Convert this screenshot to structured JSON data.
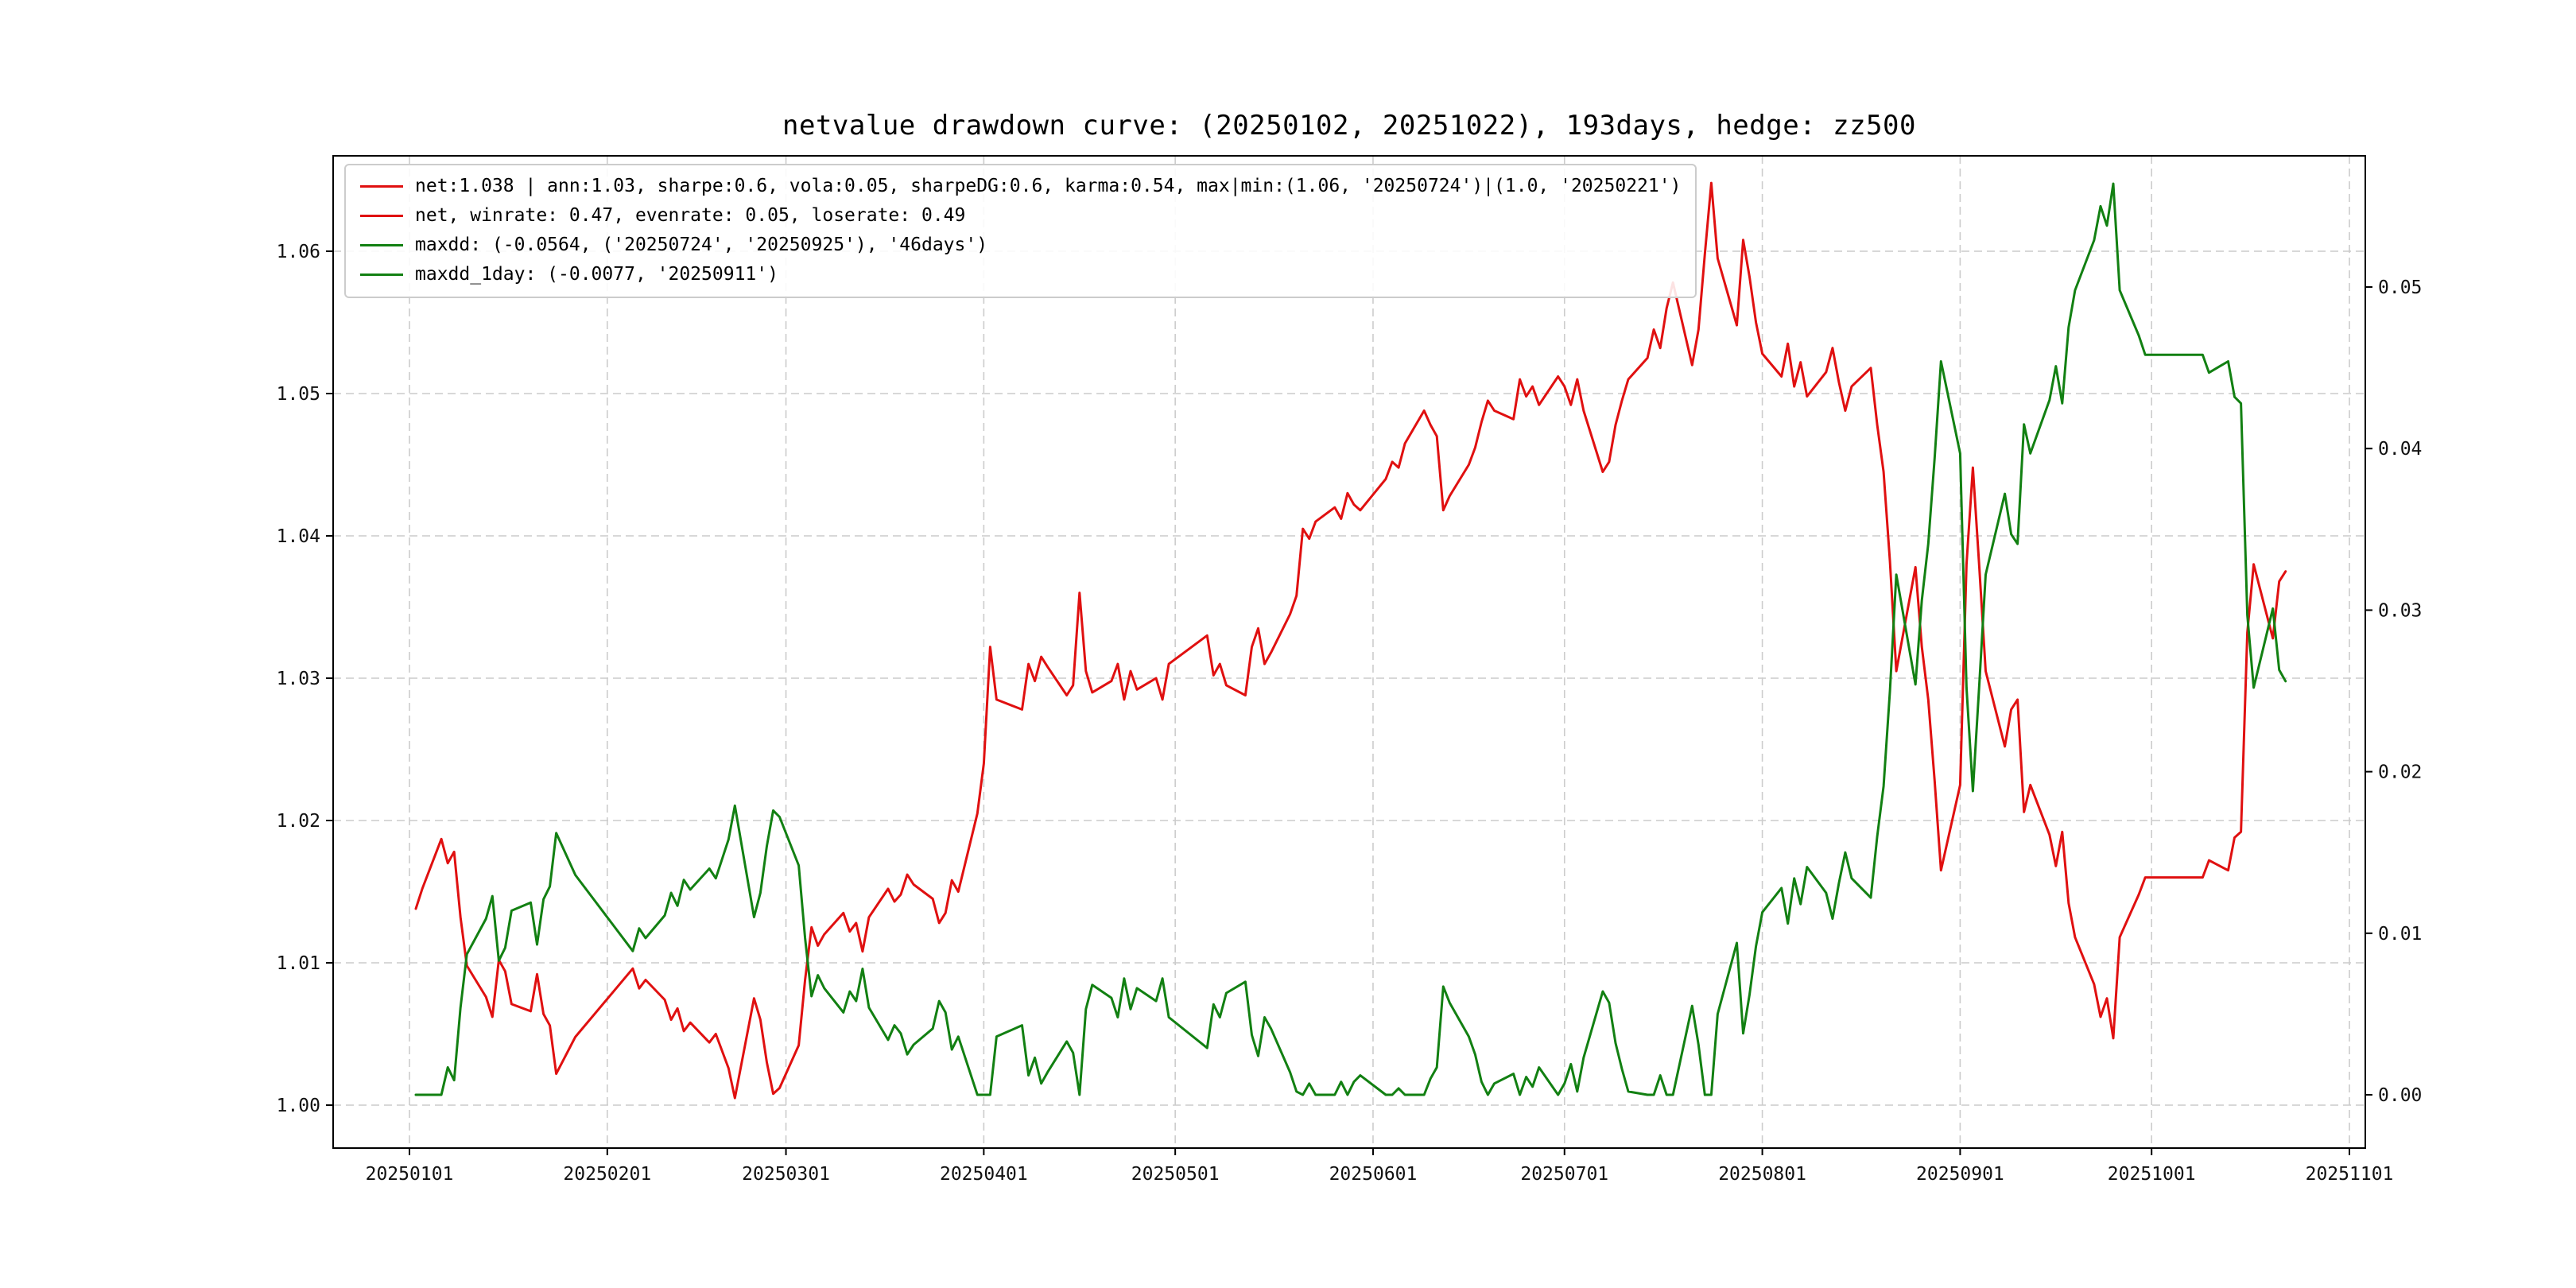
{
  "chart_data": {
    "type": "line",
    "title": "netvalue drawdown curve: (20250102, 20251022), 193days, hedge: zz500",
    "grid": true,
    "legend_position": "upper left",
    "x_ticks": [
      "20250101",
      "20250201",
      "20250301",
      "20250401",
      "20250501",
      "20250601",
      "20250701",
      "20250801",
      "20250901",
      "20251001",
      "20251101"
    ],
    "left_axis": {
      "ticks": [
        "1.00",
        "1.01",
        "1.02",
        "1.03",
        "1.04",
        "1.05",
        "1.06"
      ],
      "ylim": [
        0.9971,
        1.0676
      ]
    },
    "right_axis": {
      "ticks": [
        "0.00",
        "0.01",
        "0.02",
        "0.03",
        "0.04",
        "0.05"
      ],
      "ylim": [
        -0.0033,
        0.0581
      ]
    },
    "colors": {
      "net": "#e01010",
      "drawdown": "#128012"
    },
    "legend": [
      {
        "label": "net:1.038 | ann:1.03, sharpe:0.6, vola:0.05, sharpeDG:0.6, karma:0.54, max|min:(1.06, '20250724')|(1.0, '20250221')",
        "color_key": "net"
      },
      {
        "label": "net, winrate: 0.47, evenrate: 0.05, loserate: 0.49",
        "color_key": "net"
      },
      {
        "label": "maxdd: (-0.0564, ('20250724', '20250925'), '46days')",
        "color_key": "drawdown"
      },
      {
        "label": "maxdd_1day: (-0.0077, '20250911')",
        "color_key": "drawdown"
      }
    ],
    "dates": [
      "20250102",
      "20250103",
      "20250106",
      "20250107",
      "20250108",
      "20250109",
      "20250110",
      "20250113",
      "20250114",
      "20250115",
      "20250116",
      "20250117",
      "20250120",
      "20250121",
      "20250122",
      "20250123",
      "20250124",
      "20250127",
      "20250205",
      "20250206",
      "20250207",
      "20250210",
      "20250211",
      "20250212",
      "20250213",
      "20250214",
      "20250217",
      "20250218",
      "20250219",
      "20250220",
      "20250221",
      "20250224",
      "20250225",
      "20250226",
      "20250227",
      "20250228",
      "20250303",
      "20250304",
      "20250305",
      "20250306",
      "20250307",
      "20250310",
      "20250311",
      "20250312",
      "20250313",
      "20250314",
      "20250317",
      "20250318",
      "20250319",
      "20250320",
      "20250321",
      "20250324",
      "20250325",
      "20250326",
      "20250327",
      "20250328",
      "20250331",
      "20250401",
      "20250402",
      "20250403",
      "20250407",
      "20250408",
      "20250409",
      "20250410",
      "20250411",
      "20250414",
      "20250415",
      "20250416",
      "20250417",
      "20250418",
      "20250421",
      "20250422",
      "20250423",
      "20250424",
      "20250425",
      "20250428",
      "20250429",
      "20250430",
      "20250506",
      "20250507",
      "20250508",
      "20250509",
      "20250512",
      "20250513",
      "20250514",
      "20250515",
      "20250516",
      "20250519",
      "20250520",
      "20250521",
      "20250522",
      "20250523",
      "20250526",
      "20250527",
      "20250528",
      "20250529",
      "20250530",
      "20250603",
      "20250604",
      "20250605",
      "20250606",
      "20250609",
      "20250610",
      "20250611",
      "20250612",
      "20250613",
      "20250616",
      "20250617",
      "20250618",
      "20250619",
      "20250620",
      "20250623",
      "20250624",
      "20250625",
      "20250626",
      "20250627",
      "20250630",
      "20250701",
      "20250702",
      "20250703",
      "20250704",
      "20250707",
      "20250708",
      "20250709",
      "20250710",
      "20250711",
      "20250714",
      "20250715",
      "20250716",
      "20250717",
      "20250718",
      "20250721",
      "20250722",
      "20250723",
      "20250724",
      "20250725",
      "20250728",
      "20250729",
      "20250730",
      "20250731",
      "20250801",
      "20250804",
      "20250805",
      "20250806",
      "20250807",
      "20250808",
      "20250811",
      "20250812",
      "20250813",
      "20250814",
      "20250815",
      "20250818",
      "20250819",
      "20250820",
      "20250821",
      "20250822",
      "20250825",
      "20250826",
      "20250827",
      "20250828",
      "20250829",
      "20250901",
      "20250902",
      "20250903",
      "20250904",
      "20250905",
      "20250908",
      "20250909",
      "20250910",
      "20250911",
      "20250912",
      "20250915",
      "20250916",
      "20250917",
      "20250918",
      "20250919",
      "20250922",
      "20250923",
      "20250924",
      "20250925",
      "20250926",
      "20250929",
      "20250930",
      "20251009",
      "20251010",
      "20251013",
      "20251014",
      "20251015",
      "20251016",
      "20251017",
      "20251020",
      "20251021",
      "20251022"
    ],
    "series": [
      {
        "name": "net",
        "axis": "left",
        "color_key": "net",
        "values": [
          1.0138,
          1.0152,
          1.0187,
          1.017,
          1.0178,
          1.0132,
          1.0098,
          1.0076,
          1.0062,
          1.0102,
          1.0094,
          1.0071,
          1.0066,
          1.0092,
          1.0064,
          1.0056,
          1.0022,
          1.0048,
          1.0096,
          1.0082,
          1.0088,
          1.0074,
          1.006,
          1.0068,
          1.0052,
          1.0058,
          1.0044,
          1.005,
          1.0038,
          1.0026,
          1.0005,
          1.0075,
          1.006,
          1.003,
          1.0008,
          1.0012,
          1.0042,
          1.0088,
          1.0125,
          1.0112,
          1.012,
          1.0135,
          1.0122,
          1.0128,
          1.0108,
          1.0132,
          1.0152,
          1.0143,
          1.0148,
          1.0162,
          1.0155,
          1.0145,
          1.0128,
          1.0135,
          1.0158,
          1.015,
          1.0205,
          1.024,
          1.0322,
          1.0285,
          1.0278,
          1.031,
          1.0298,
          1.0315,
          1.0308,
          1.0288,
          1.0295,
          1.036,
          1.0305,
          1.029,
          1.0298,
          1.031,
          1.0285,
          1.0305,
          1.0292,
          1.03,
          1.0285,
          1.031,
          1.033,
          1.0302,
          1.031,
          1.0295,
          1.0288,
          1.0322,
          1.0335,
          1.031,
          1.0318,
          1.0345,
          1.0358,
          1.0405,
          1.0398,
          1.041,
          1.042,
          1.0412,
          1.043,
          1.0422,
          1.0418,
          1.044,
          1.0452,
          1.0448,
          1.0465,
          1.0488,
          1.0478,
          1.047,
          1.0418,
          1.0428,
          1.045,
          1.0462,
          1.048,
          1.0495,
          1.0488,
          1.0482,
          1.051,
          1.0498,
          1.0505,
          1.0492,
          1.0512,
          1.0505,
          1.0492,
          1.051,
          1.0488,
          1.0445,
          1.0452,
          1.0478,
          1.0495,
          1.051,
          1.0525,
          1.0545,
          1.0532,
          1.056,
          1.0578,
          1.052,
          1.0545,
          1.0598,
          1.0648,
          1.0595,
          1.0548,
          1.0608,
          1.0582,
          1.055,
          1.0528,
          1.0512,
          1.0535,
          1.0505,
          1.0522,
          1.0498,
          1.0515,
          1.0532,
          1.0508,
          1.0488,
          1.0505,
          1.0518,
          1.0478,
          1.0445,
          1.0382,
          1.0305,
          1.0378,
          1.0322,
          1.0285,
          1.0228,
          1.0165,
          1.0225,
          1.038,
          1.0448,
          1.0378,
          1.0305,
          1.0252,
          1.0278,
          1.0285,
          1.0206,
          1.0225,
          1.019,
          1.0168,
          1.0192,
          1.0142,
          1.0118,
          1.0085,
          1.0062,
          1.0075,
          1.0047,
          1.0118,
          1.0148,
          1.016,
          1.016,
          1.0172,
          1.0165,
          1.0188,
          1.0192,
          1.0332,
          1.038,
          1.0328,
          1.0368,
          1.0375
        ]
      },
      {
        "name": "drawdown",
        "axis": "right",
        "color_key": "drawdown",
        "values": [
          0,
          0,
          0,
          0.0017,
          0.0009,
          0.0054,
          0.0087,
          0.0109,
          0.0123,
          0.0083,
          0.0091,
          0.0114,
          0.0119,
          0.0093,
          0.0121,
          0.0129,
          0.0162,
          0.0136,
          0.0089,
          0.0103,
          0.0097,
          0.0111,
          0.0125,
          0.0117,
          0.0133,
          0.0127,
          0.014,
          0.0134,
          0.0146,
          0.0158,
          0.0179,
          0.011,
          0.0125,
          0.0154,
          0.0176,
          0.0172,
          0.0142,
          0.0097,
          0.0061,
          0.0074,
          0.0066,
          0.0051,
          0.0064,
          0.0058,
          0.0078,
          0.0054,
          0.0034,
          0.0043,
          0.0038,
          0.0025,
          0.0031,
          0.0041,
          0.0058,
          0.0051,
          0.0028,
          0.0036,
          0,
          0,
          0,
          0.0036,
          0.0043,
          0.0012,
          0.0023,
          0.0007,
          0.0014,
          0.0033,
          0.0026,
          0,
          0.0053,
          0.0068,
          0.006,
          0.0048,
          0.0072,
          0.0053,
          0.0066,
          0.0058,
          0.0072,
          0.0048,
          0.0029,
          0.0056,
          0.0048,
          0.0063,
          0.007,
          0.0037,
          0.0024,
          0.0048,
          0.0041,
          0.0014,
          0.0002,
          0,
          0.0007,
          0,
          0,
          0.0008,
          0,
          0.0008,
          0.0012,
          0,
          0,
          0.0004,
          0,
          0,
          0.001,
          0.0017,
          0.0067,
          0.0057,
          0.0036,
          0.0025,
          0.0008,
          0,
          0.0007,
          0.0013,
          0,
          0.0011,
          0.0005,
          0.0017,
          0,
          0.0007,
          0.0019,
          0.0002,
          0.0023,
          0.0064,
          0.0057,
          0.0032,
          0.0016,
          0.0002,
          0,
          0,
          0.0012,
          0,
          0,
          0.0055,
          0.0031,
          0,
          0,
          0.005,
          0.0094,
          0.0038,
          0.0062,
          0.0092,
          0.0113,
          0.0128,
          0.0106,
          0.0134,
          0.0118,
          0.0141,
          0.0125,
          0.0109,
          0.0131,
          0.015,
          0.0134,
          0.0122,
          0.016,
          0.0191,
          0.025,
          0.0322,
          0.0254,
          0.0306,
          0.0341,
          0.0394,
          0.0454,
          0.0397,
          0.0252,
          0.0188,
          0.0254,
          0.0322,
          0.0372,
          0.0347,
          0.0341,
          0.0415,
          0.0397,
          0.043,
          0.0451,
          0.0428,
          0.0475,
          0.0498,
          0.0529,
          0.055,
          0.0538,
          0.0564,
          0.0498,
          0.047,
          0.0458,
          0.0458,
          0.0447,
          0.0454,
          0.0432,
          0.0428,
          0.0297,
          0.0252,
          0.0301,
          0.0263,
          0.0256
        ]
      }
    ]
  }
}
